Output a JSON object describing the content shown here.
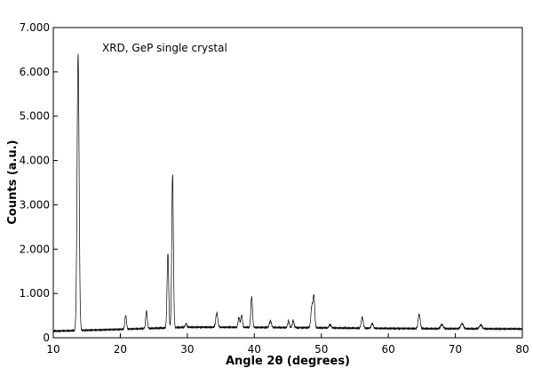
{
  "chart_data": {
    "type": "line",
    "title": "",
    "annotation": "XRD, GeP single crystal",
    "xlabel": "Angle 2θ (degrees)",
    "ylabel": "Counts (a.u.)",
    "xlim": [
      10,
      80
    ],
    "ylim": [
      0,
      7000
    ],
    "xticks": [
      10,
      20,
      30,
      40,
      50,
      60,
      70,
      80
    ],
    "yticks": [
      0,
      1000,
      2000,
      3000,
      4000,
      5000,
      6000,
      7000
    ],
    "xtick_labels": [
      "10",
      "20",
      "30",
      "40",
      "50",
      "60",
      "70",
      "80"
    ],
    "ytick_labels": [
      "0",
      "1.000",
      "2.000",
      "3.000",
      "4.000",
      "5.000",
      "6.000",
      "7.000"
    ],
    "grid": false,
    "legend": "none",
    "line_color": "#000000",
    "series": [
      {
        "background": [
          [
            10,
            150
          ],
          [
            20,
            190
          ],
          [
            30,
            240
          ],
          [
            40,
            235
          ],
          [
            50,
            225
          ],
          [
            60,
            210
          ],
          [
            70,
            205
          ],
          [
            80,
            200
          ]
        ],
        "peaks": [
          [
            13.7,
            6400,
            0.15
          ],
          [
            20.8,
            510,
            0.12
          ],
          [
            23.9,
            600,
            0.12
          ],
          [
            27.1,
            1900,
            0.12
          ],
          [
            27.8,
            3680,
            0.12
          ],
          [
            29.8,
            320,
            0.12
          ],
          [
            34.4,
            560,
            0.15
          ],
          [
            37.7,
            460,
            0.12
          ],
          [
            38.1,
            510,
            0.12
          ],
          [
            39.6,
            930,
            0.12
          ],
          [
            42.4,
            380,
            0.15
          ],
          [
            45.1,
            380,
            0.12
          ],
          [
            45.8,
            390,
            0.12
          ],
          [
            48.6,
            720,
            0.15
          ],
          [
            48.9,
            900,
            0.12
          ],
          [
            51.3,
            300,
            0.15
          ],
          [
            56.1,
            460,
            0.15
          ],
          [
            57.6,
            320,
            0.15
          ],
          [
            64.6,
            530,
            0.15
          ],
          [
            68.0,
            300,
            0.2
          ],
          [
            71.0,
            320,
            0.2
          ],
          [
            73.8,
            290,
            0.2
          ]
        ]
      }
    ]
  }
}
